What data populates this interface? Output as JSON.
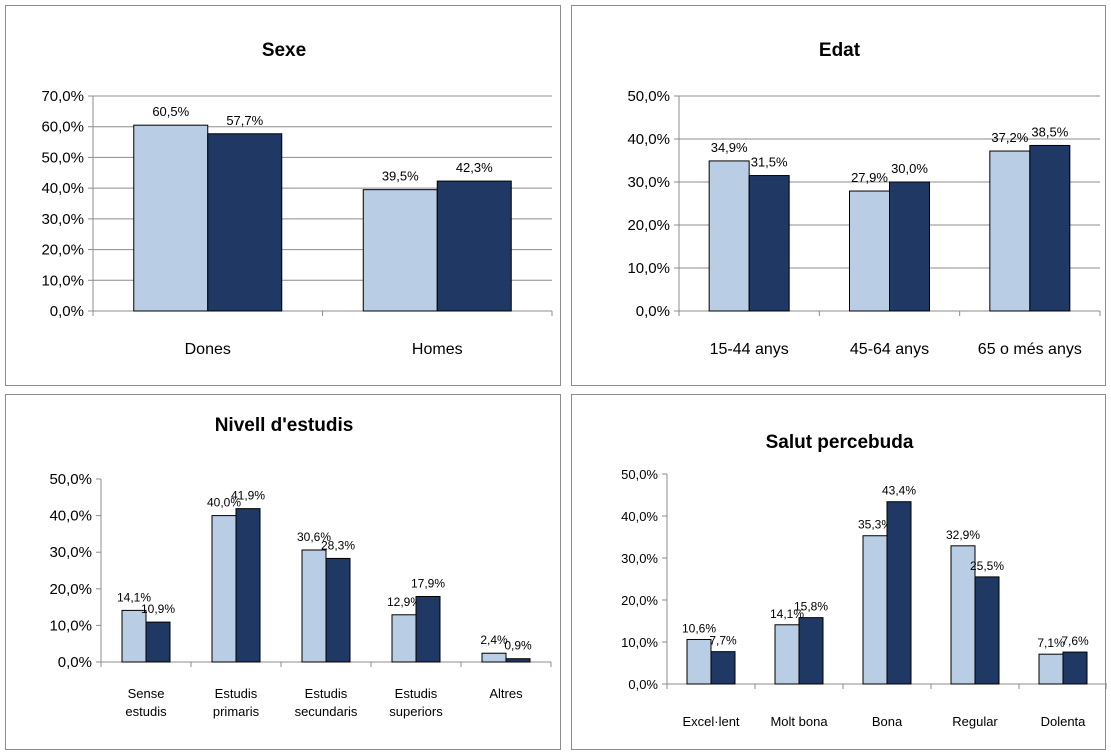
{
  "colors": {
    "series_1": "#b9cde5",
    "series_2": "#1f3864",
    "grid": "#8c8c8c",
    "border": "#8c8c8c"
  },
  "chart_data": [
    {
      "type": "bar",
      "title": "Sexe",
      "categories": [
        [
          "Dones"
        ],
        [
          "Homes"
        ]
      ],
      "series": [
        {
          "values": [
            60.5,
            39.5
          ],
          "labels": [
            "60,5%",
            "39,5%"
          ]
        },
        {
          "values": [
            57.7,
            42.3
          ],
          "labels": [
            "57,7%",
            "42,3%"
          ]
        }
      ],
      "yticks": [
        "0,0%",
        "10,0%",
        "20,0%",
        "30,0%",
        "40,0%",
        "50,0%",
        "60,0%",
        "70,0%"
      ],
      "ylim": [
        0,
        70
      ],
      "grid": true
    },
    {
      "type": "bar",
      "title": "Edat",
      "categories": [
        [
          "15-44 anys"
        ],
        [
          "45-64 anys"
        ],
        [
          "65 o més anys"
        ]
      ],
      "series": [
        {
          "values": [
            34.9,
            27.9,
            37.2
          ],
          "labels": [
            "34,9%",
            "27,9%",
            "37,2%"
          ]
        },
        {
          "values": [
            31.5,
            30.0,
            38.5
          ],
          "labels": [
            "31,5%",
            "30,0%",
            "38,5%"
          ]
        }
      ],
      "yticks": [
        "0,0%",
        "10,0%",
        "20,0%",
        "30,0%",
        "40,0%",
        "50,0%"
      ],
      "ylim": [
        0,
        50
      ],
      "grid": true
    },
    {
      "type": "bar",
      "title": "Nivell d'estudis",
      "categories": [
        [
          "Sense",
          "estudis"
        ],
        [
          "Estudis",
          "primaris"
        ],
        [
          "Estudis",
          "secundaris"
        ],
        [
          "Estudis",
          "superiors"
        ],
        [
          "Altres"
        ]
      ],
      "series": [
        {
          "values": [
            14.1,
            40.0,
            30.6,
            12.9,
            2.4
          ],
          "labels": [
            "14,1%",
            "40,0%",
            "30,6%",
            "12,9%",
            "2,4%"
          ]
        },
        {
          "values": [
            10.9,
            41.9,
            28.3,
            17.9,
            0.9
          ],
          "labels": [
            "10,9%",
            "41,9%",
            "28,3%",
            "17,9%",
            "0,9%"
          ]
        }
      ],
      "yticks": [
        "0,0%",
        "10,0%",
        "20,0%",
        "30,0%",
        "40,0%",
        "50,0%"
      ],
      "ylim": [
        0,
        50
      ],
      "grid": false
    },
    {
      "type": "bar",
      "title": "Salut percebuda",
      "categories": [
        [
          "Excel·lent"
        ],
        [
          "Molt bona"
        ],
        [
          "Bona"
        ],
        [
          "Regular"
        ],
        [
          "Dolenta"
        ]
      ],
      "series": [
        {
          "values": [
            10.6,
            14.1,
            35.3,
            32.9,
            7.1
          ],
          "labels": [
            "10,6%",
            "14,1%",
            "35,3%",
            "32,9%",
            "7,1%"
          ]
        },
        {
          "values": [
            7.7,
            15.8,
            43.4,
            25.5,
            7.6
          ],
          "labels": [
            "7,7%",
            "15,8%",
            "43,4%",
            "25,5%",
            "7,6%"
          ]
        }
      ],
      "yticks": [
        "0,0%",
        "10,0%",
        "20,0%",
        "30,0%",
        "40,0%",
        "50,0%"
      ],
      "ylim": [
        0,
        50
      ],
      "grid": false
    }
  ]
}
